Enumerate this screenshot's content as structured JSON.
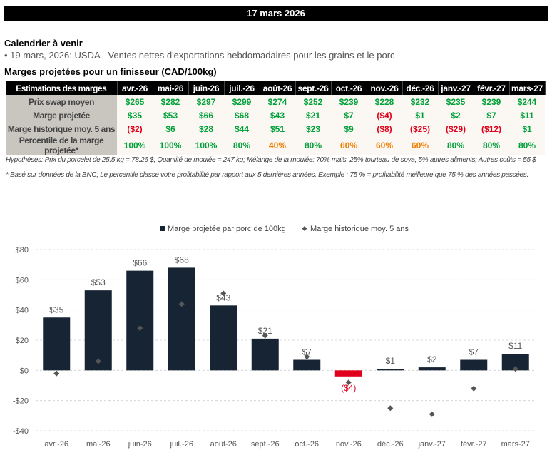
{
  "header": {
    "date": "17 mars 2026"
  },
  "calendar": {
    "title": "Calendrier à venir",
    "event": "• 19 mars, 2026: USDA - Ventes nettes d'exportations hebdomadaires pour les grains et le porc"
  },
  "margins": {
    "title": "Marges projetées pour un finisseur (CAD/100kg)",
    "corner_label": "Estimations des marges",
    "months": [
      "avr.-26",
      "mai-26",
      "juin-26",
      "juil.-26",
      "août-26",
      "sept.-26",
      "oct.-26",
      "nov.-26",
      "déc.-26",
      "janv.-27",
      "févr.-27",
      "mars-27"
    ],
    "rows": [
      {
        "label": "Prix swap moyen",
        "values": [
          "$265",
          "$282",
          "$297",
          "$299",
          "$274",
          "$252",
          "$239",
          "$228",
          "$232",
          "$235",
          "$239",
          "$244"
        ]
      },
      {
        "label": "Marge projetée",
        "values": [
          "$35",
          "$53",
          "$66",
          "$68",
          "$43",
          "$21",
          "$7",
          "($4)",
          "$1",
          "$2",
          "$7",
          "$11"
        ]
      },
      {
        "label": "Marge historique moy. 5 ans",
        "values": [
          "($2)",
          "$6",
          "$28",
          "$44",
          "$51",
          "$23",
          "$9",
          "($8)",
          "($25)",
          "($29)",
          "($12)",
          "$1"
        ]
      },
      {
        "label": "Percentile de la marge projetée*",
        "values": [
          "100%",
          "100%",
          "100%",
          "80%",
          "40%",
          "80%",
          "60%",
          "60%",
          "60%",
          "80%",
          "80%",
          "80%"
        ]
      }
    ],
    "colors": {
      "positive": "#00a13a",
      "negative": "#e0001b",
      "mid": "#f07d00"
    }
  },
  "notes": {
    "hypotheses": "Hypothèses: Prix du porcelet de 25.5 kg = 78.26 $; Quantité de moulée = 247 kg; Mélange de la moulée: 70% maïs, 25% tourteau de soya, 5% autres aliments; Autres coûts = 55 $",
    "footnote": "* Basé sur données de la BNC; Le percentile classe votre profitabilité par rapport aux 5 dernières années. Exemple : 75 % = profitabilité meilleure que 75 % des années passées."
  },
  "chart_data": {
    "type": "bar",
    "categories": [
      "avr.-26",
      "mai-26",
      "juin-26",
      "juil.-26",
      "août-26",
      "sept.-26",
      "oct.-26",
      "nov.-26",
      "déc.-26",
      "janv.-27",
      "févr.-27",
      "mars-27"
    ],
    "series": [
      {
        "name": "Marge projetée par porc de 100kg",
        "type": "bar",
        "color": "#172433",
        "negative_color": "#e0001b",
        "values": [
          35,
          53,
          66,
          68,
          43,
          21,
          7,
          -4,
          1,
          2,
          7,
          11
        ],
        "labels": [
          "$35",
          "$53",
          "$66",
          "$68",
          "$43",
          "$21",
          "$7",
          "($4)",
          "$1",
          "$2",
          "$7",
          "$11"
        ]
      },
      {
        "name": "Marge historique moy. 5 ans",
        "type": "scatter",
        "marker": "diamond",
        "color": "#555555",
        "values": [
          -2,
          6,
          28,
          44,
          51,
          23,
          9,
          -8,
          -25,
          -29,
          -12,
          1
        ]
      }
    ],
    "ylim": [
      -40,
      80
    ],
    "yticks": [
      -40,
      -20,
      0,
      20,
      40,
      60,
      80
    ],
    "ytick_labels": [
      "-$40",
      "-$20",
      "$0",
      "$20",
      "$40",
      "$60",
      "$80"
    ],
    "legend": "top-center",
    "grid": true
  }
}
